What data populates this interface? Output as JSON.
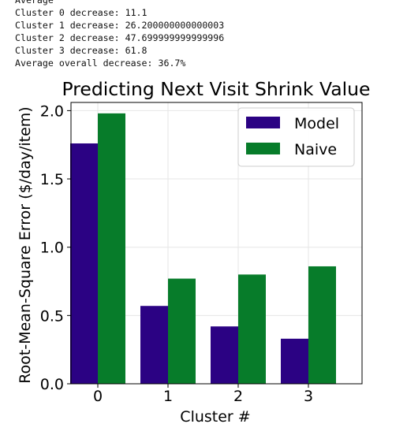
{
  "console": {
    "lines": [
      "Average",
      "Cluster 0 decrease: 11.1",
      "Cluster 1 decrease: 26.200000000000003",
      "Cluster 2 decrease: 47.699999999999996",
      "Cluster 3 decrease: 61.8",
      "Average overall decrease: 36.7%"
    ]
  },
  "chart_data": {
    "type": "bar",
    "title": "Predicting Next Visit Shrink Value",
    "xlabel": "Cluster #",
    "ylabel": "Root-Mean-Square Error ($/day/item)",
    "categories": [
      "0",
      "1",
      "2",
      "3"
    ],
    "series": [
      {
        "name": "Model",
        "color": "#2b0283",
        "values": [
          1.76,
          0.57,
          0.42,
          0.33
        ]
      },
      {
        "name": "Naive",
        "color": "#077c2a",
        "values": [
          1.98,
          0.77,
          0.8,
          0.86
        ]
      }
    ],
    "ylim": [
      0,
      2.06
    ],
    "yticks": [
      0.0,
      0.5,
      1.0,
      1.5,
      2.0
    ],
    "ytick_labels": [
      "0.0",
      "0.5",
      "1.0",
      "1.5",
      "2.0"
    ],
    "grid": true,
    "legend_position": "top-right"
  }
}
